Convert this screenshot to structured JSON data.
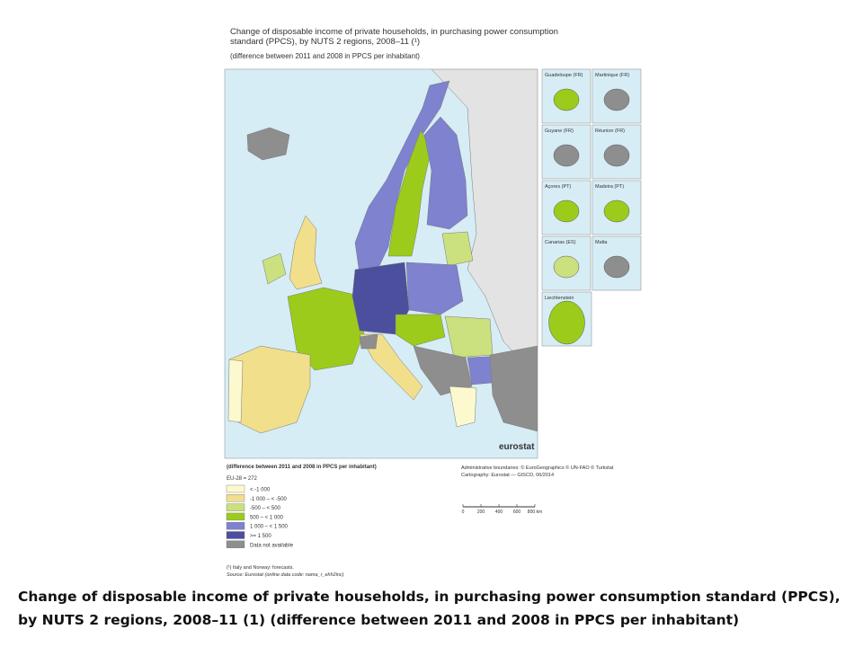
{
  "map": {
    "title": "Change of disposable income of private households, in purchasing power consumption standard (PPCS), by NUTS 2 regions, 2008–11 (¹)",
    "title_lines": [
      "Change of disposable income of private households, in purchasing power consumption",
      "standard (PPCS), by NUTS 2 regions, 2008–11 (¹)"
    ],
    "subtitle": "(difference between 2011 and 2008 in PPCS per inhabitant)",
    "insets": [
      "Guadeloupe (FR)",
      "Martinique (FR)",
      "Guyane (FR)",
      "Réunion (FR)",
      "Açores (PT)",
      "Madeira (PT)",
      "Canarias (ES)",
      "Malta",
      "Liechtenstein"
    ],
    "logo": "eurostat",
    "legend": {
      "title": "(difference between 2011 and 2008 in PPCS per inhabitant)",
      "note": "EU-28 = 272",
      "items": [
        {
          "label": "< -1 000",
          "color": "#fdf9cf"
        },
        {
          "label": "-1 000 – < -500",
          "color": "#f1df8c"
        },
        {
          "label": "-500 – < 500",
          "color": "#cbe07e"
        },
        {
          "label": "500 – < 1 000",
          "color": "#9ccb1c"
        },
        {
          "label": "1 000 – < 1 500",
          "color": "#7e82cf"
        },
        {
          "label": ">= 1 500",
          "color": "#4b4f9e"
        },
        {
          "label": "Data not available",
          "color": "#8e8e8e"
        }
      ]
    },
    "credits": [
      "Administrative boundaries: © EuroGeographics © UN-FAO © Turkstat",
      "Cartography: Eurostat — GISCO, 06/2014"
    ],
    "scale": [
      "0",
      "200",
      "400",
      "600",
      "800 km"
    ],
    "footnote": "(¹) Italy and Norway: forecasts.",
    "source": "Source: Eurostat (online data code: nama_r_ehh2inc)"
  },
  "caption": "Change of disposable income of private households, in purchasing power consumption standard (PPCS), by NUTS 2 regions, 2008–11 (1) (difference between 2011 and 2008 in PPCS per inhabitant)"
}
